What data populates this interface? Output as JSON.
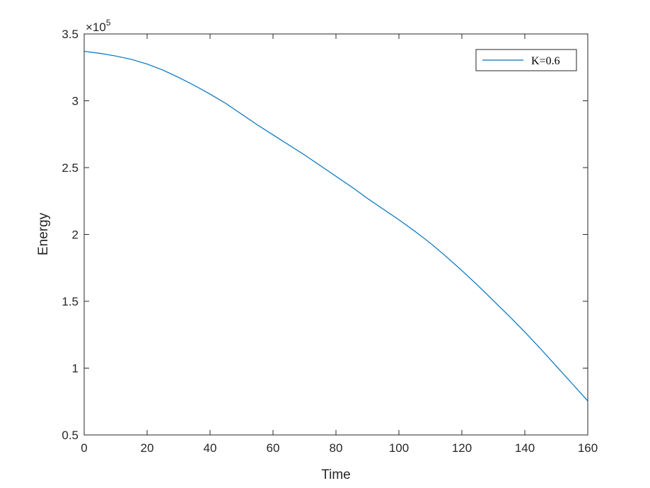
{
  "chart_data": {
    "type": "line",
    "xlabel": "Time",
    "ylabel": "Energy",
    "exponent_base": "×10",
    "exponent_power": "5",
    "xlim": [
      0,
      160
    ],
    "ylim": [
      0.5,
      3.5
    ],
    "x_ticks": [
      0,
      20,
      40,
      60,
      80,
      100,
      120,
      140,
      160
    ],
    "x_tick_labels": [
      "0",
      "20",
      "40",
      "60",
      "80",
      "100",
      "120",
      "140",
      "160"
    ],
    "y_ticks": [
      0.5,
      1,
      1.5,
      2,
      2.5,
      3,
      3.5
    ],
    "y_tick_labels": [
      "0.5",
      "1",
      "1.5",
      "2",
      "2.5",
      "3",
      "3.5"
    ],
    "grid": false,
    "legend_position": "top-right",
    "series": [
      {
        "name": "K=0.6",
        "color": "#0072BD",
        "x": [
          0,
          5,
          10,
          15,
          20,
          25,
          30,
          35,
          40,
          45,
          50,
          55,
          60,
          65,
          70,
          75,
          80,
          85,
          90,
          95,
          100,
          105,
          110,
          115,
          120,
          125,
          130,
          135,
          140,
          145,
          150,
          155,
          160
        ],
        "y": [
          3.37,
          3.355,
          3.335,
          3.31,
          3.275,
          3.23,
          3.175,
          3.115,
          3.05,
          2.98,
          2.9,
          2.82,
          2.745,
          2.67,
          2.595,
          2.515,
          2.435,
          2.355,
          2.27,
          2.19,
          2.11,
          2.025,
          1.935,
          1.835,
          1.73,
          1.62,
          1.505,
          1.39,
          1.27,
          1.145,
          1.015,
          0.885,
          0.755
        ]
      }
    ]
  }
}
